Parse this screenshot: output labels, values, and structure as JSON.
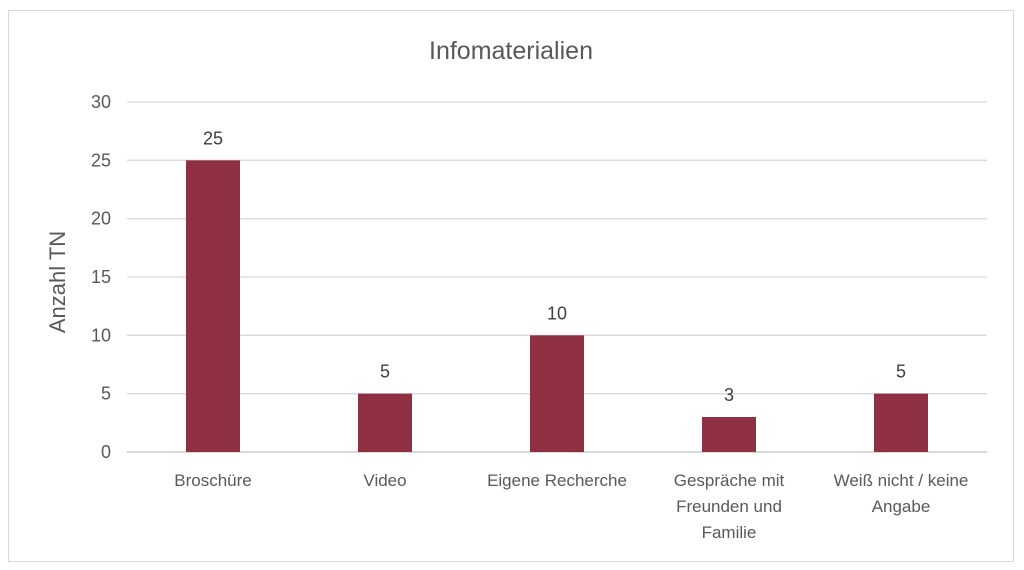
{
  "chart_data": {
    "type": "bar",
    "title": "Infomaterialien",
    "xlabel": "",
    "ylabel": "Anzahl TN",
    "categories": [
      [
        "Broschüre"
      ],
      [
        "Video"
      ],
      [
        "Eigene Recherche"
      ],
      [
        "Gespräche mit",
        "Freunden und",
        "Familie"
      ],
      [
        "Weiß nicht / keine",
        "Angabe"
      ]
    ],
    "values": [
      25,
      5,
      10,
      3,
      5
    ],
    "ylim": [
      0,
      30
    ],
    "yticks": [
      0,
      5,
      10,
      15,
      20,
      25,
      30
    ],
    "grid": true,
    "legend": "none",
    "bar_color": "#8e2f42",
    "data_labels": true
  }
}
